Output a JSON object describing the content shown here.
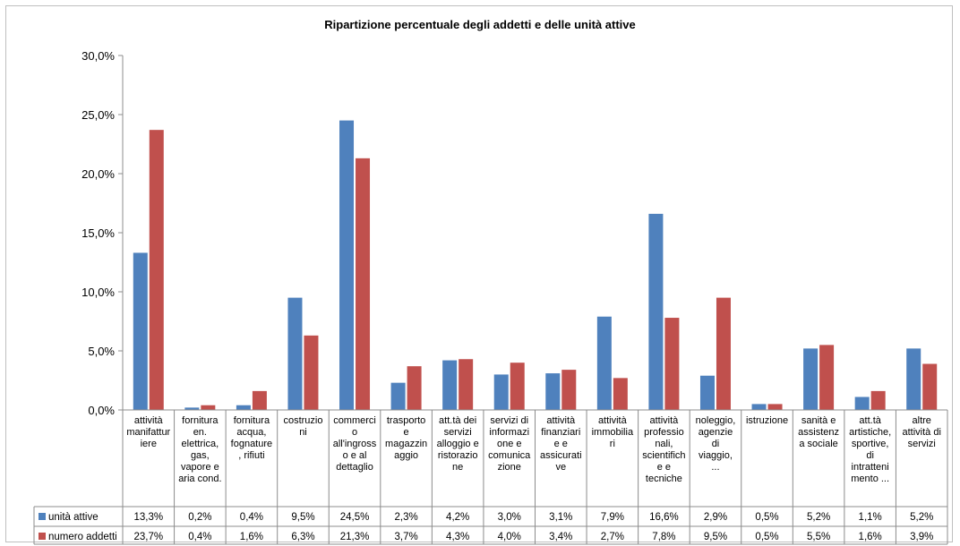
{
  "chart_data": {
    "type": "bar",
    "title": "Ripartizione percentuale degli addetti e delle unità attive",
    "xlabel": "",
    "ylabel": "",
    "ylim": [
      0,
      30
    ],
    "yticks": [
      "0,0%",
      "5,0%",
      "10,0%",
      "15,0%",
      "20,0%",
      "25,0%",
      "30,0%"
    ],
    "grid": false,
    "legend": "data-table-left",
    "categories": [
      [
        "attività",
        "manifattur",
        "iere"
      ],
      [
        "fornitura",
        "en.",
        "elettrica,",
        "gas,",
        "vapore e",
        "aria cond."
      ],
      [
        "fornitura",
        "acqua,",
        "fognature",
        ", rifiuti"
      ],
      [
        "costruzio",
        "ni"
      ],
      [
        "commerci",
        "o",
        "all'ingross",
        "o e al",
        "dettaglio"
      ],
      [
        "trasporto",
        "e",
        "magazzin",
        "aggio"
      ],
      [
        "att.tà dei",
        "servizi",
        "alloggio e",
        "ristorazio",
        "ne"
      ],
      [
        "servizi di",
        "informazi",
        "one e",
        "comunica",
        "zione"
      ],
      [
        "attività",
        "finanziari",
        "e e",
        "assicurati",
        "ve"
      ],
      [
        "attività",
        "immobilia",
        "ri"
      ],
      [
        "attività",
        "professio",
        "nali,",
        "scientifich",
        "e e",
        "tecniche"
      ],
      [
        "noleggio,",
        "agenzie",
        "di",
        "viaggio,",
        "..."
      ],
      [
        "istruzione"
      ],
      [
        "sanità e",
        "assistenz",
        "a sociale"
      ],
      [
        "att.tà",
        "artistiche,",
        "sportive,",
        "di",
        "intratteni",
        "mento ..."
      ],
      [
        "altre",
        "attività di",
        "servizi"
      ]
    ],
    "series": [
      {
        "name": "unità attive",
        "color": "#4f81bd",
        "values": [
          13.3,
          0.2,
          0.4,
          9.5,
          24.5,
          2.3,
          4.2,
          3.0,
          3.1,
          7.9,
          16.6,
          2.9,
          0.5,
          5.2,
          1.1,
          5.2
        ],
        "labels": [
          "13,3%",
          "0,2%",
          "0,4%",
          "9,5%",
          "24,5%",
          "2,3%",
          "4,2%",
          "3,0%",
          "3,1%",
          "7,9%",
          "16,6%",
          "2,9%",
          "0,5%",
          "5,2%",
          "1,1%",
          "5,2%"
        ]
      },
      {
        "name": "numero addetti",
        "color": "#c0504d",
        "values": [
          23.7,
          0.4,
          1.6,
          6.3,
          21.3,
          3.7,
          4.3,
          4.0,
          3.4,
          2.7,
          7.8,
          9.5,
          0.5,
          5.5,
          1.6,
          3.9
        ],
        "labels": [
          "23,7%",
          "0,4%",
          "1,6%",
          "6,3%",
          "21,3%",
          "3,7%",
          "4,3%",
          "4,0%",
          "3,4%",
          "2,7%",
          "7,8%",
          "9,5%",
          "0,5%",
          "5,5%",
          "1,6%",
          "3,9%"
        ]
      }
    ]
  }
}
